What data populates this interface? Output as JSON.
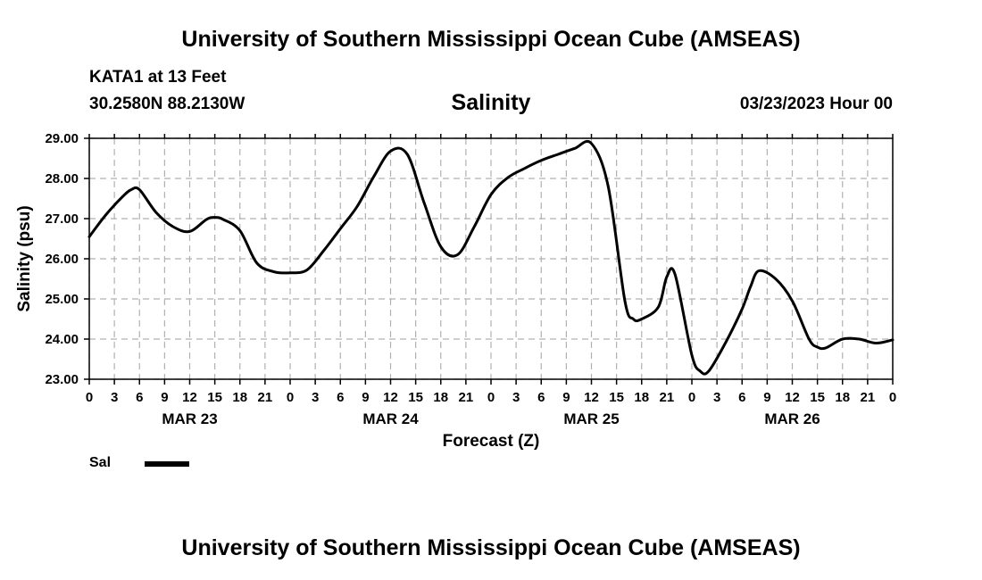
{
  "header": {
    "org_title": "University of Southern Mississippi Ocean Cube (AMSEAS)",
    "station": "KATA1 at 13 Feet",
    "coords": "30.2580N  88.2130W",
    "date_hour": "03/23/2023 Hour 00"
  },
  "footer": {
    "org_title": "University of Southern Mississippi Ocean Cube (AMSEAS)"
  },
  "legend": {
    "label": "Sal"
  },
  "chart_data": {
    "type": "line",
    "title": "Salinity",
    "xlabel": "Forecast (Z)",
    "ylabel": "Salinity (psu)",
    "ylim": [
      23.0,
      29.0
    ],
    "xlim": [
      0,
      96
    ],
    "y_ticks": [
      "23.00",
      "24.00",
      "25.00",
      "26.00",
      "27.00",
      "28.00",
      "29.00"
    ],
    "y_tick_values": [
      23,
      24,
      25,
      26,
      27,
      28,
      29
    ],
    "x_tick_labels": [
      "0",
      "3",
      "6",
      "9",
      "12",
      "15",
      "18",
      "21",
      "0",
      "3",
      "6",
      "9",
      "12",
      "15",
      "18",
      "21",
      "0",
      "3",
      "6",
      "9",
      "12",
      "15",
      "18",
      "21",
      "0",
      "3",
      "6",
      "9",
      "12",
      "15",
      "18",
      "21",
      "0"
    ],
    "day_labels": [
      {
        "label": "MAR 23",
        "hour": 12
      },
      {
        "label": "MAR 24",
        "hour": 36
      },
      {
        "label": "MAR 25",
        "hour": 60
      },
      {
        "label": "MAR 26",
        "hour": 84
      }
    ],
    "grid": true,
    "series": [
      {
        "name": "Sal",
        "color": "#000000",
        "x": [
          0,
          2,
          4,
          5,
          6,
          8,
          10,
          12,
          14,
          15,
          16,
          18,
          20,
          22,
          24,
          26,
          28,
          30,
          32,
          34,
          36,
          38,
          40,
          42,
          44,
          46,
          48,
          50,
          52,
          54,
          56,
          58,
          60,
          62,
          64,
          65,
          66,
          68,
          69,
          70,
          72,
          73,
          74,
          76,
          78,
          79,
          80,
          82,
          84,
          86,
          87,
          88,
          90,
          92,
          94,
          96
        ],
        "y": [
          26.55,
          27.1,
          27.55,
          27.72,
          27.72,
          27.15,
          26.8,
          26.68,
          26.98,
          27.03,
          26.98,
          26.7,
          25.9,
          25.68,
          25.65,
          25.72,
          26.2,
          26.75,
          27.3,
          28.05,
          28.68,
          28.6,
          27.4,
          26.3,
          26.1,
          26.8,
          27.6,
          28.02,
          28.25,
          28.45,
          28.6,
          28.75,
          28.87,
          27.8,
          24.95,
          24.5,
          24.5,
          24.8,
          25.55,
          25.6,
          23.6,
          23.2,
          23.2,
          23.9,
          24.75,
          25.3,
          25.7,
          25.5,
          24.95,
          24.0,
          23.8,
          23.78,
          24.0,
          24.0,
          23.9,
          23.98
        ]
      }
    ]
  }
}
